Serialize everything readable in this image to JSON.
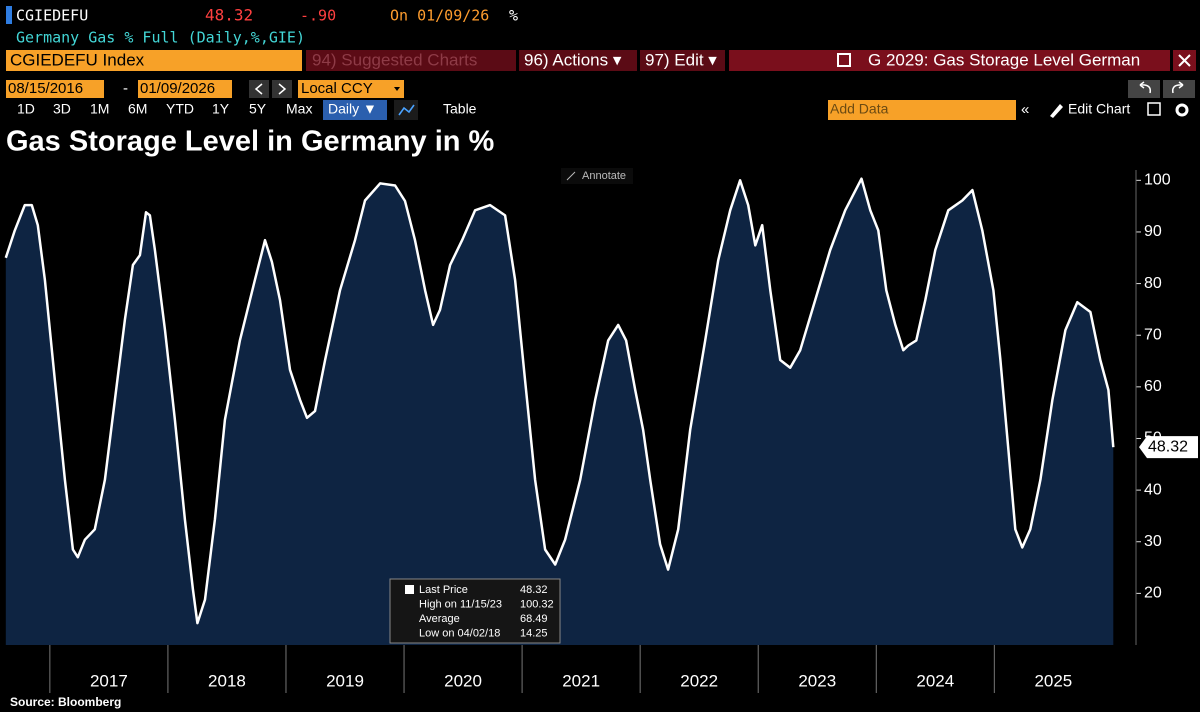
{
  "header": {
    "ticker": "CGIEDEFU",
    "price": 48.32,
    "change": "-.90",
    "date": "On 01/09/26",
    "unit": "%",
    "description": "Germany Gas % Full (Daily,%,GIE)"
  },
  "toolbar": {
    "security": "CGIEDEFU Index",
    "menus": [
      "94) Suggested Charts",
      "96) Actions ▾",
      "97) Edit ▾"
    ],
    "chart_name": "G 2029: Gas Storage Level German",
    "start_date": "08/15/2016",
    "date_separator": "-",
    "end_date": "01/09/2026",
    "currency": "Local CCY",
    "periods": [
      "1D",
      "3D",
      "1M",
      "6M",
      "YTD",
      "1Y",
      "5Y",
      "Max"
    ],
    "frequency": "Daily ▼",
    "table": "Table",
    "add_data": "Add Data",
    "edit_chart": "Edit Chart",
    "annotate": "Annotate"
  },
  "chart_data": {
    "type": "area",
    "title": "Gas Storage Level in Germany in %",
    "source": "Source: Bloomberg",
    "x": [
      2016.627,
      2016.703,
      2016.788,
      2016.847,
      2016.898,
      2016.958,
      2017.042,
      2017.127,
      2017.195,
      2017.237,
      2017.297,
      2017.381,
      2017.466,
      2017.551,
      2017.636,
      2017.703,
      2017.763,
      2017.814,
      2017.847,
      2017.89,
      2017.975,
      2018.059,
      2018.144,
      2018.212,
      2018.25,
      2018.314,
      2018.398,
      2018.483,
      2018.61,
      2018.737,
      2018.822,
      2018.881,
      2018.949,
      2019.034,
      2019.119,
      2019.178,
      2019.246,
      2019.331,
      2019.458,
      2019.585,
      2019.669,
      2019.797,
      2019.924,
      2020.008,
      2020.093,
      2020.178,
      2020.246,
      2020.305,
      2020.39,
      2020.492,
      2020.602,
      2020.729,
      2020.856,
      2020.941,
      2021.025,
      2021.11,
      2021.195,
      2021.28,
      2021.364,
      2021.492,
      2021.619,
      2021.729,
      2021.814,
      2021.881,
      2021.958,
      2022.025,
      2022.085,
      2022.169,
      2022.237,
      2022.322,
      2022.424,
      2022.551,
      2022.661,
      2022.763,
      2022.847,
      2022.915,
      2022.975,
      2023.034,
      2023.102,
      2023.186,
      2023.271,
      2023.356,
      2023.483,
      2023.61,
      2023.737,
      2023.875,
      2023.949,
      2024.017,
      2024.085,
      2024.161,
      2024.229,
      2024.271,
      2024.339,
      2024.415,
      2024.5,
      2024.61,
      2024.729,
      2024.814,
      2024.898,
      2024.992,
      2025.051,
      2025.119,
      2025.178,
      2025.237,
      2025.305,
      2025.39,
      2025.492,
      2025.602,
      2025.703,
      2025.814,
      2025.898,
      2025.966,
      2026.008
    ],
    "series": [
      {
        "name": "CGIEDEFU Index",
        "color": "#ffffff",
        "fill": "#0e2442",
        "values": [
          85,
          90.3,
          95.2,
          95.2,
          91.3,
          80.7,
          61.4,
          42,
          28.5,
          27,
          30.4,
          32.4,
          42,
          57.5,
          73,
          83.6,
          85.5,
          93.8,
          93.2,
          86.5,
          71,
          53.6,
          34.3,
          20.8,
          14.25,
          18.8,
          34.3,
          53.6,
          69,
          80.7,
          88.4,
          84.2,
          76.8,
          63.3,
          57.5,
          54,
          55.3,
          65.2,
          78.7,
          88.4,
          96.1,
          99.4,
          99,
          96,
          88.4,
          78.7,
          72,
          74.9,
          83.6,
          88.4,
          94.2,
          95.2,
          93.2,
          80.7,
          61.4,
          42,
          28.5,
          25.6,
          30.4,
          42,
          57.5,
          69,
          72,
          69,
          59.4,
          51.7,
          42,
          29.5,
          24.6,
          32.4,
          51.7,
          69,
          84.5,
          94.2,
          100,
          95.2,
          87.4,
          91.3,
          78.7,
          65.2,
          63.7,
          67.1,
          76.8,
          86.5,
          94.2,
          100.32,
          94.2,
          90.3,
          78.7,
          72,
          67.1,
          68,
          69,
          76.8,
          86.5,
          94.2,
          96.1,
          98.1,
          90.3,
          78.7,
          65.2,
          47.8,
          32.4,
          28.9,
          32.4,
          42,
          57.5,
          71,
          76.4,
          74.5,
          65.2,
          59.4,
          48.32
        ]
      }
    ],
    "xlim": [
      2016.62,
      2026.2
    ],
    "xticks": [
      2017,
      2018,
      2019,
      2020,
      2021,
      2022,
      2023,
      2024,
      2025
    ],
    "ylim": [
      10,
      102
    ],
    "yticks": [
      20,
      30,
      40,
      50,
      60,
      70,
      80,
      90,
      100
    ],
    "grid": false,
    "stats": [
      {
        "label": "Last Price",
        "value": 48.32
      },
      {
        "label": "High on 11/15/23",
        "value": 100.32
      },
      {
        "label": "Average",
        "value": 68.49
      },
      {
        "label": "Low on 04/02/18",
        "value": 14.25
      }
    ]
  }
}
